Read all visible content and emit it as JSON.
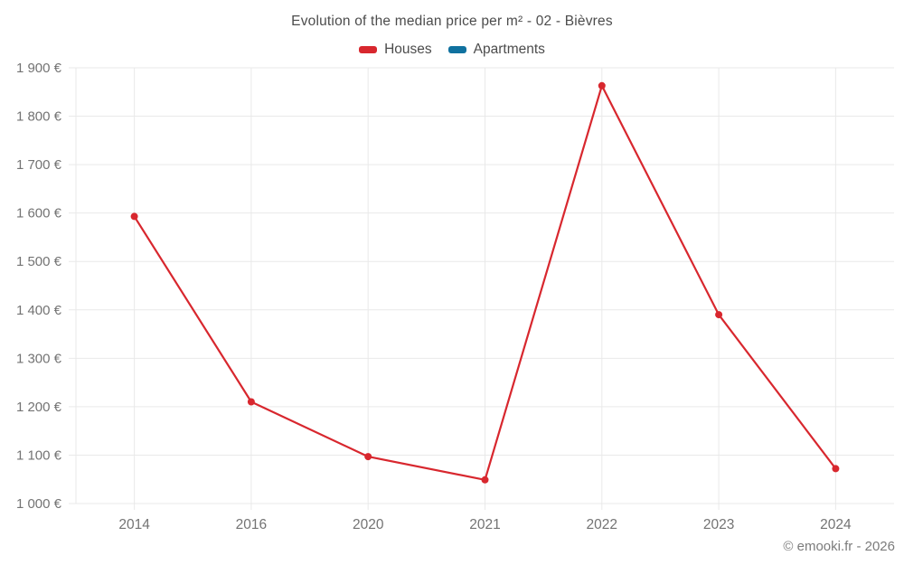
{
  "page": {
    "footer": "© emooki.fr - 2026"
  },
  "chart_data": {
    "type": "line",
    "title": "Evolution of the median price per m² - 02 - Bièvres",
    "categories": [
      "2014",
      "2016",
      "2020",
      "2021",
      "2022",
      "2023",
      "2024"
    ],
    "series": [
      {
        "name": "Houses",
        "color": "#d8272e",
        "values": [
          1593,
          1210,
          1097,
          1049,
          1863,
          1390,
          1072
        ]
      },
      {
        "name": "Apartments",
        "color": "#10719f",
        "values": []
      }
    ],
    "xlabel": "",
    "ylabel": "",
    "ylim": [
      1000,
      1900
    ],
    "ytick_step": 100,
    "ytick_labels": [
      "1 000 €",
      "1 100 €",
      "1 200 €",
      "1 300 €",
      "1 400 €",
      "1 500 €",
      "1 600 €",
      "1 700 €",
      "1 800 €",
      "1 900 €"
    ],
    "grid": true,
    "legend_position": "top",
    "grid_color": "#e9e9e9",
    "tick_label_color": "#737373",
    "marker_radius": 4,
    "line_width": 2.2
  }
}
